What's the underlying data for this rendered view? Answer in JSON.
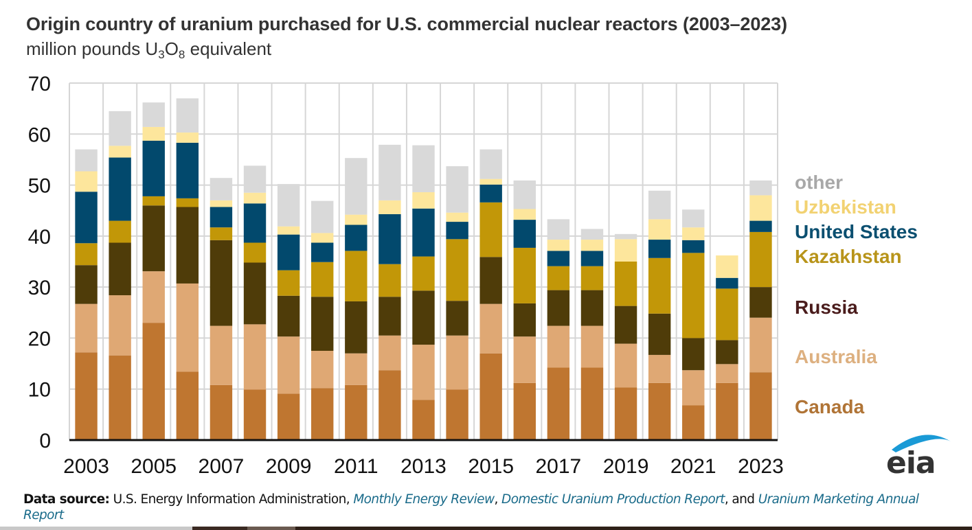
{
  "header": {
    "title": "Origin country of uranium purchased for U.S. commercial nuclear reactors (2003–2023)",
    "subtitle_prefix": "million pounds U",
    "subtitle_sub1": "3",
    "subtitle_mid": "O",
    "subtitle_sub2": "8",
    "subtitle_suffix": " equivalent"
  },
  "chart_data": {
    "type": "bar",
    "stacked": true,
    "title": "Origin country of uranium purchased for U.S. commercial nuclear reactors (2003–2023)",
    "ylabel": "million pounds U3O8 equivalent",
    "xlabel": "",
    "ylim": [
      0,
      70
    ],
    "yticks": [
      0,
      10,
      20,
      30,
      40,
      50,
      60,
      70
    ],
    "grid": true,
    "legend_position": "right",
    "categories": [
      "2003",
      "2004",
      "2005",
      "2006",
      "2007",
      "2008",
      "2009",
      "2010",
      "2011",
      "2012",
      "2013",
      "2014",
      "2015",
      "2016",
      "2017",
      "2018",
      "2019",
      "2020",
      "2021",
      "2022",
      "2023"
    ],
    "xtick_labels": [
      "2003",
      "2005",
      "2007",
      "2009",
      "2011",
      "2013",
      "2015",
      "2017",
      "2019",
      "2021",
      "2023"
    ],
    "series": [
      {
        "name": "Canada",
        "color": "#bf7630",
        "values": [
          17.2,
          16.6,
          23.0,
          13.4,
          10.8,
          9.9,
          9.1,
          10.2,
          10.8,
          13.7,
          7.9,
          9.9,
          17.0,
          11.2,
          14.2,
          14.2,
          10.3,
          11.2,
          6.8,
          11.2,
          13.3
        ]
      },
      {
        "name": "Australia",
        "color": "#dfa874",
        "values": [
          9.5,
          11.8,
          10.1,
          17.3,
          11.6,
          12.8,
          11.2,
          7.3,
          6.2,
          6.8,
          10.8,
          10.6,
          9.7,
          9.1,
          8.2,
          8.2,
          8.6,
          5.5,
          6.9,
          3.7,
          10.7
        ]
      },
      {
        "name": "Russia",
        "color": "#4f3c09",
        "values": [
          7.6,
          10.3,
          12.9,
          15.0,
          16.8,
          12.1,
          8.0,
          10.6,
          10.2,
          7.6,
          10.6,
          6.8,
          9.2,
          6.5,
          7.0,
          7.0,
          7.4,
          8.1,
          6.3,
          4.7,
          6.0
        ]
      },
      {
        "name": "Kazakhstan",
        "color": "#c29708",
        "values": [
          4.3,
          4.3,
          1.8,
          1.7,
          2.5,
          3.9,
          5.0,
          6.8,
          9.9,
          6.4,
          6.7,
          12.1,
          10.7,
          10.9,
          4.7,
          4.7,
          8.7,
          10.9,
          16.7,
          10.1,
          10.8
        ]
      },
      {
        "name": "United States",
        "color": "#02496d",
        "values": [
          10.1,
          12.4,
          10.9,
          10.9,
          4.0,
          7.7,
          7.0,
          3.8,
          5.1,
          9.8,
          9.4,
          3.4,
          3.5,
          5.5,
          3.0,
          3.0,
          0.0,
          3.6,
          2.5,
          2.1,
          2.2
        ]
      },
      {
        "name": "Uzbekistan",
        "color": "#fde69c",
        "values": [
          4.0,
          2.3,
          2.7,
          2.0,
          1.3,
          2.1,
          1.6,
          1.9,
          2.0,
          2.7,
          3.2,
          1.8,
          1.1,
          2.1,
          2.2,
          2.2,
          4.4,
          4.0,
          2.5,
          4.4,
          5.0
        ]
      },
      {
        "name": "other",
        "color": "#d9d9d9",
        "values": [
          4.3,
          6.8,
          4.8,
          6.7,
          4.4,
          5.3,
          8.3,
          6.3,
          11.1,
          10.9,
          9.2,
          9.1,
          5.8,
          5.6,
          4.0,
          2.1,
          1.0,
          5.6,
          3.5,
          0.0,
          2.9
        ]
      }
    ],
    "legend": [
      {
        "label": "other",
        "color": "#a8a8a8"
      },
      {
        "label": "Uzbekistan",
        "color": "#f2d272"
      },
      {
        "label": "United States",
        "color": "#0b4f70"
      },
      {
        "label": "Kazakhstan",
        "color": "#b8941a"
      },
      {
        "label": "Russia",
        "color": "#4a1c1c"
      },
      {
        "label": "Australia",
        "color": "#ddb080"
      },
      {
        "label": "Canada",
        "color": "#b07436"
      }
    ]
  },
  "logo": {
    "text": "eia",
    "arc_color": "#1a9ad6"
  },
  "footer": {
    "label": "Data source:",
    "text1": " U.S. Energy Information Administration, ",
    "link1": "Monthly Energy Review",
    "sep1": ", ",
    "link2": "Domestic Uranium Production Report",
    "sep2": ", and ",
    "link3": "Uranium Marketing Annual Report"
  }
}
